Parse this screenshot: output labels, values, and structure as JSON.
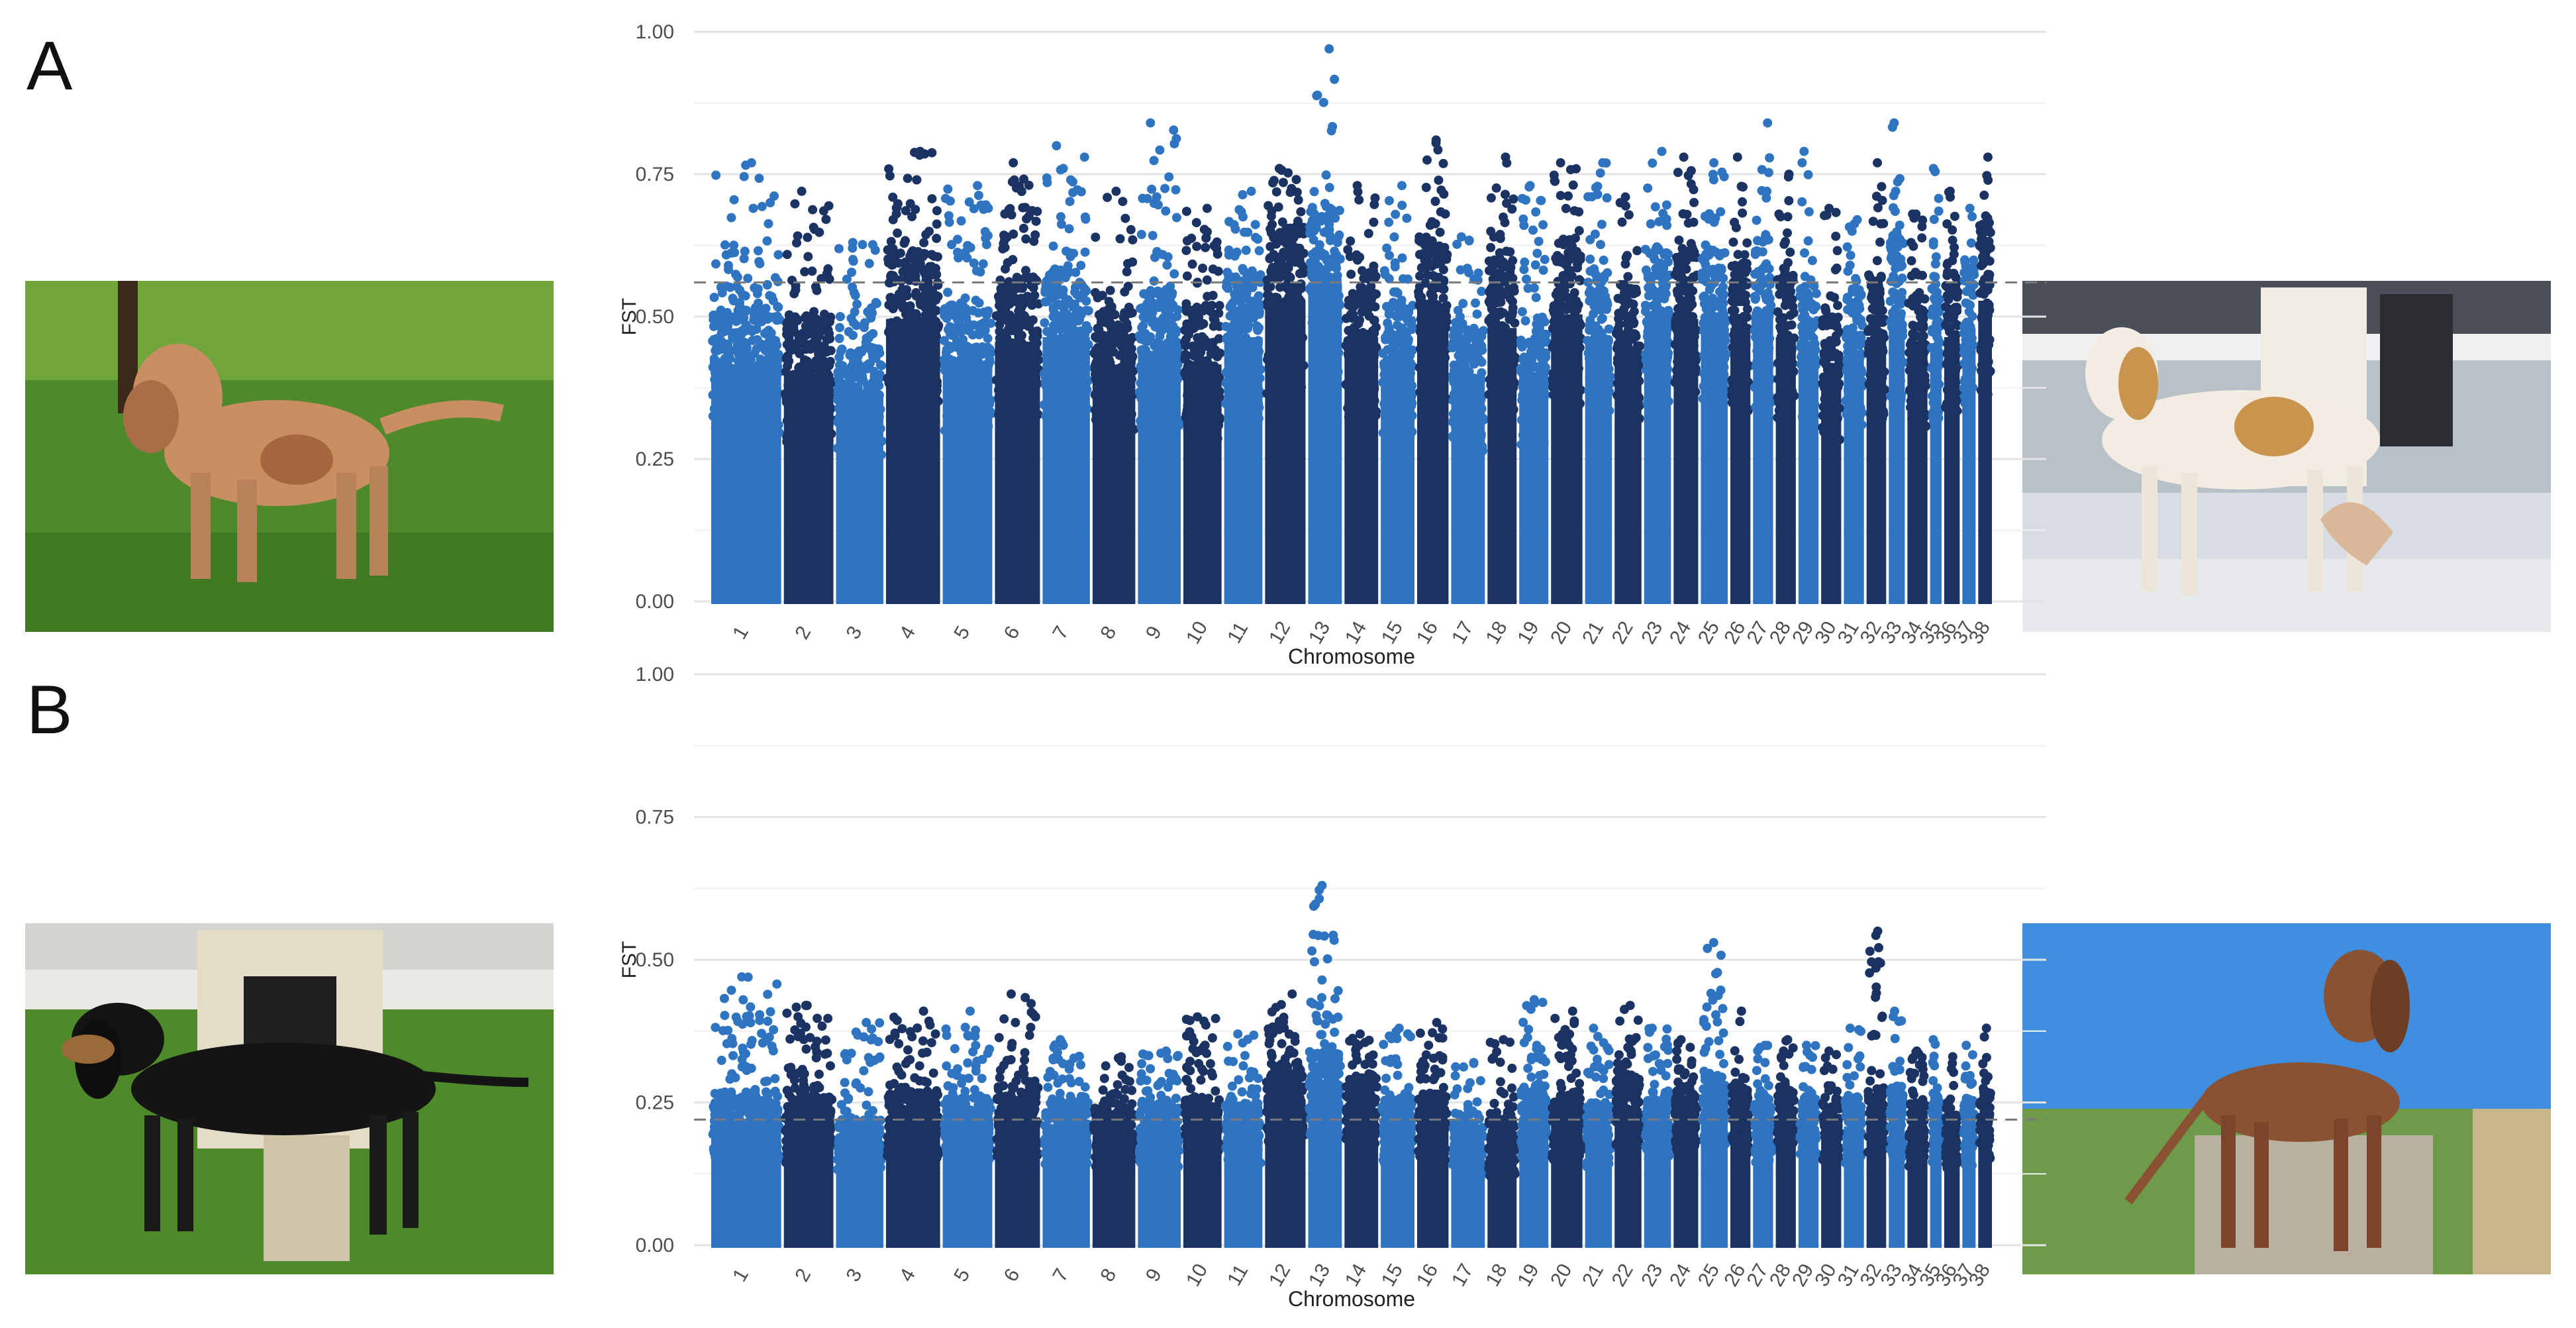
{
  "figure": {
    "panels": [
      "A",
      "B"
    ]
  },
  "colors": {
    "light_blue": "#2f74c0",
    "dark_blue": "#1b3362",
    "gridline": "#ebebeb",
    "threshold": "#7a7a7a",
    "axis_text": "#4d4d4d"
  },
  "chart_data": [
    {
      "panel": "A",
      "type": "scatter",
      "title": "",
      "xlabel": "Chromosome",
      "ylabel": "FST",
      "ylim": [
        0,
        1
      ],
      "yticks": [
        "0.00",
        "0.25",
        "0.50",
        "0.75",
        "1.00"
      ],
      "grid": true,
      "legend": "none",
      "threshold": 0.56,
      "chromosomes": [
        "1",
        "2",
        "3",
        "4",
        "5",
        "6",
        "7",
        "8",
        "9",
        "10",
        "11",
        "12",
        "13",
        "14",
        "15",
        "16",
        "17",
        "18",
        "19",
        "20",
        "21",
        "22",
        "23",
        "24",
        "25",
        "26",
        "27",
        "28",
        "29",
        "30",
        "31",
        "32",
        "33",
        "34",
        "35",
        "36",
        "37",
        "38"
      ],
      "chromosome_max_fst": [
        0.77,
        0.72,
        0.63,
        0.79,
        0.73,
        0.77,
        0.8,
        0.72,
        0.84,
        0.69,
        0.72,
        0.76,
        0.97,
        0.73,
        0.73,
        0.81,
        0.64,
        0.78,
        0.73,
        0.77,
        0.77,
        0.71,
        0.79,
        0.78,
        0.77,
        0.78,
        0.84,
        0.75,
        0.79,
        0.69,
        0.67,
        0.77,
        0.84,
        0.68,
        0.76,
        0.72,
        0.69,
        0.78
      ],
      "dense_band_top": [
        0.52,
        0.5,
        0.45,
        0.62,
        0.52,
        0.57,
        0.58,
        0.52,
        0.55,
        0.52,
        0.58,
        0.66,
        0.7,
        0.58,
        0.52,
        0.64,
        0.48,
        0.6,
        0.5,
        0.63,
        0.58,
        0.55,
        0.62,
        0.62,
        0.62,
        0.6,
        0.62,
        0.58,
        0.55,
        0.5,
        0.54,
        0.58,
        0.64,
        0.55,
        0.55,
        0.58,
        0.6,
        0.66
      ]
    },
    {
      "panel": "B",
      "type": "scatter",
      "title": "",
      "xlabel": "Chromosome",
      "ylabel": "FST",
      "ylim": [
        0,
        1
      ],
      "yticks": [
        "0.00",
        "0.25",
        "0.50",
        "0.75",
        "1.00"
      ],
      "grid": true,
      "legend": "none",
      "threshold": 0.22,
      "chromosomes": [
        "1",
        "2",
        "3",
        "4",
        "5",
        "6",
        "7",
        "8",
        "9",
        "10",
        "11",
        "12",
        "13",
        "14",
        "15",
        "16",
        "17",
        "18",
        "19",
        "20",
        "21",
        "22",
        "23",
        "24",
        "25",
        "26",
        "27",
        "28",
        "29",
        "30",
        "31",
        "32",
        "33",
        "34",
        "35",
        "36",
        "37",
        "38"
      ],
      "chromosome_max_fst": [
        0.47,
        0.42,
        0.39,
        0.41,
        0.41,
        0.44,
        0.36,
        0.33,
        0.34,
        0.4,
        0.37,
        0.44,
        0.63,
        0.37,
        0.38,
        0.39,
        0.32,
        0.36,
        0.43,
        0.41,
        0.38,
        0.42,
        0.38,
        0.36,
        0.53,
        0.41,
        0.35,
        0.36,
        0.35,
        0.34,
        0.38,
        0.55,
        0.41,
        0.34,
        0.36,
        0.33,
        0.35,
        0.38
      ],
      "dense_band_top": [
        0.27,
        0.26,
        0.22,
        0.27,
        0.26,
        0.28,
        0.25,
        0.24,
        0.25,
        0.26,
        0.25,
        0.32,
        0.34,
        0.3,
        0.26,
        0.27,
        0.21,
        0.22,
        0.28,
        0.27,
        0.25,
        0.3,
        0.27,
        0.28,
        0.3,
        0.28,
        0.26,
        0.28,
        0.26,
        0.26,
        0.26,
        0.28,
        0.28,
        0.25,
        0.26,
        0.24,
        0.25,
        0.27
      ]
    }
  ]
}
